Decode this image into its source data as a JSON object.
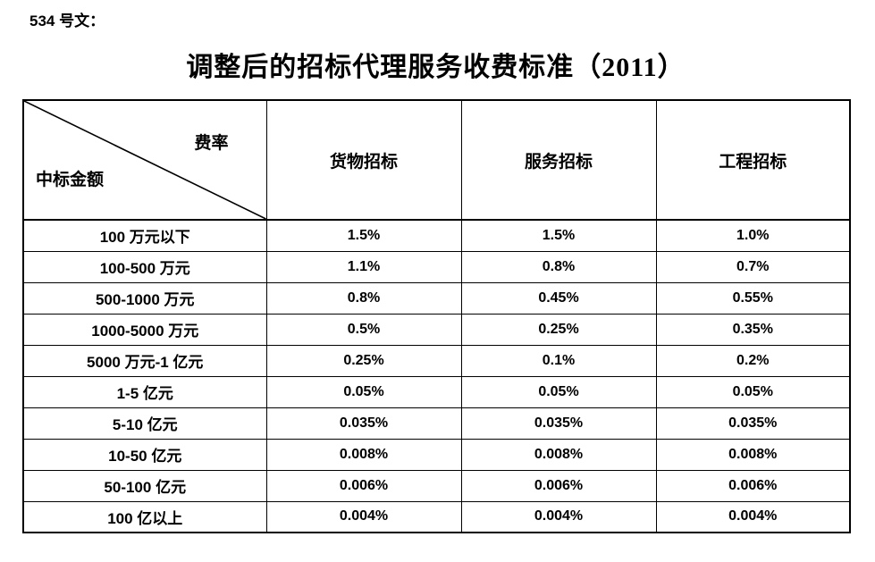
{
  "doc": {
    "ref_label": "534 号文：",
    "title": "调整后的招标代理服务收费标准（2011）"
  },
  "table": {
    "corner_top_right": "费率",
    "corner_bottom_left": "中标金额",
    "columns": [
      "货物招标",
      "服务招标",
      "工程招标"
    ],
    "rows": [
      {
        "label": "100 万元以下",
        "values": [
          "1.5%",
          "1.5%",
          "1.0%"
        ]
      },
      {
        "label": "100-500 万元",
        "values": [
          "1.1%",
          "0.8%",
          "0.7%"
        ]
      },
      {
        "label": "500-1000 万元",
        "values": [
          "0.8%",
          "0.45%",
          "0.55%"
        ]
      },
      {
        "label": "1000-5000 万元",
        "values": [
          "0.5%",
          "0.25%",
          "0.35%"
        ]
      },
      {
        "label": "5000 万元-1 亿元",
        "values": [
          "0.25%",
          "0.1%",
          "0.2%"
        ]
      },
      {
        "label": "1-5 亿元",
        "values": [
          "0.05%",
          "0.05%",
          "0.05%"
        ]
      },
      {
        "label": "5-10 亿元",
        "values": [
          "0.035%",
          "0.035%",
          "0.035%"
        ]
      },
      {
        "label": "10-50 亿元",
        "values": [
          "0.008%",
          "0.008%",
          "0.008%"
        ]
      },
      {
        "label": "50-100 亿元",
        "values": [
          "0.006%",
          "0.006%",
          "0.006%"
        ]
      },
      {
        "label": "100 亿以上",
        "values": [
          "0.004%",
          "0.004%",
          "0.004%"
        ]
      }
    ]
  },
  "colors": {
    "text": "#000000",
    "border": "#000000",
    "background": "#ffffff"
  }
}
